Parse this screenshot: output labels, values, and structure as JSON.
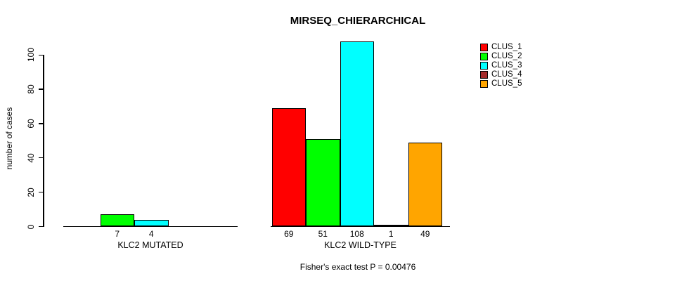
{
  "title": "MIRSEQ_CHIERARCHICAL",
  "ylabel": "number of cases",
  "footnote": "Fisher's exact test P = 0.00476",
  "legend": [
    {
      "label": "CLUS_1",
      "color": "#FF0000"
    },
    {
      "label": "CLUS_2",
      "color": "#00FF00"
    },
    {
      "label": "CLUS_3",
      "color": "#00FFFF"
    },
    {
      "label": "CLUS_4",
      "color": "#A52A2A"
    },
    {
      "label": "CLUS_5",
      "color": "#FFA500"
    }
  ],
  "chart_data": {
    "type": "bar",
    "title": "MIRSEQ_CHIERARCHICAL",
    "xlabel": "",
    "ylabel": "number of cases",
    "ylim": [
      0,
      108
    ],
    "yticks": [
      0,
      20,
      40,
      60,
      80,
      100
    ],
    "grid": false,
    "legend_position": "top-right",
    "categories": [
      "KLC2 MUTATED",
      "KLC2 WILD-TYPE"
    ],
    "series": [
      {
        "name": "CLUS_1",
        "color": "#FF0000",
        "values": [
          0,
          69
        ]
      },
      {
        "name": "CLUS_2",
        "color": "#00FF00",
        "values": [
          7,
          51
        ]
      },
      {
        "name": "CLUS_3",
        "color": "#00FFFF",
        "values": [
          4,
          108
        ]
      },
      {
        "name": "CLUS_4",
        "color": "#A52A2A",
        "values": [
          0,
          1
        ]
      },
      {
        "name": "CLUS_5",
        "color": "#FFA500",
        "values": [
          0,
          49
        ]
      }
    ],
    "bar_value_labels": {
      "KLC2 MUTATED": [
        7,
        4
      ],
      "KLC2 WILD-TYPE": [
        69,
        51,
        108,
        1,
        49
      ]
    },
    "annotation": "Fisher's exact test P = 0.00476"
  }
}
